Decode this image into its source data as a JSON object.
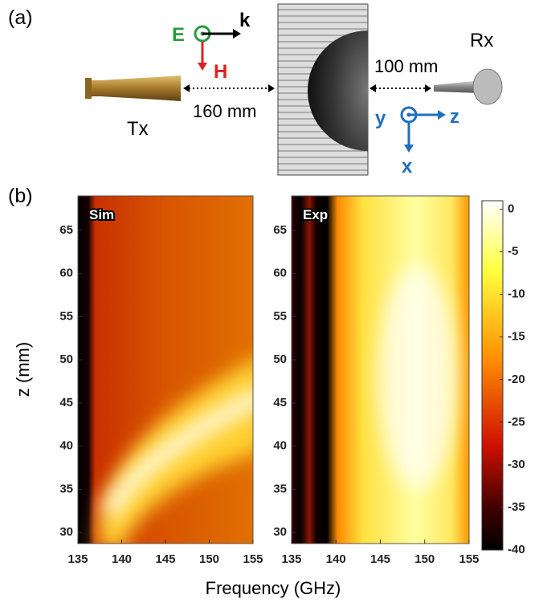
{
  "panel_a": {
    "label": "(a)",
    "e_label": "E",
    "k_label": "k",
    "h_label": "H",
    "tx_label": "Tx",
    "tx_distance": "160 mm",
    "rx_distance": "100 mm",
    "rx_label": "Rx",
    "y_axis": "y",
    "z_axis": "z",
    "x_axis": "x"
  },
  "panel_b": {
    "label": "(b)",
    "y_label": "z (mm)",
    "x_label": "Frequency (GHz)",
    "xlim": [
      135,
      155
    ],
    "xticks": [
      135,
      140,
      145,
      150,
      155
    ],
    "ylim": [
      28.7,
      69
    ],
    "yticks": [
      30,
      35,
      40,
      45,
      50,
      55,
      60,
      65
    ],
    "plots": [
      {
        "title": "Sim"
      },
      {
        "title": "Exp"
      }
    ],
    "colorbar": {
      "lim": [
        -40,
        1
      ],
      "ticks": [
        0,
        -5,
        -10,
        -15,
        -20,
        -25,
        -30,
        -35,
        -40
      ]
    }
  }
}
